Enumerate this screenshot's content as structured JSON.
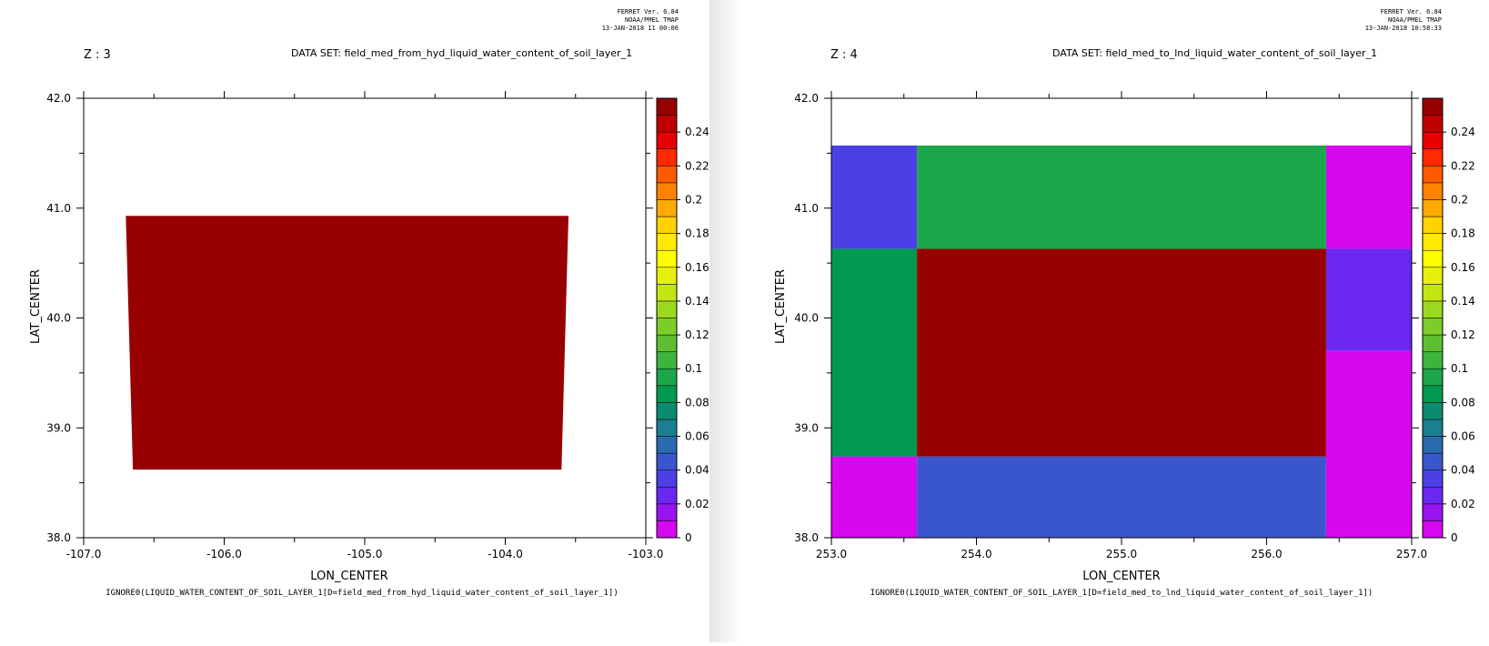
{
  "panels": [
    {
      "header": [
        "FERRET Ver. 6.84",
        "NOAA/PMEL TMAP",
        "13-JAN-2018 11 00:06"
      ],
      "z_label": "Z : 3",
      "dataset": "DATA SET: field_med_from_hyd_liquid_water_content_of_soil_layer_1",
      "footer": "IGNORE0(LIQUID_WATER_CONTENT_OF_SOIL_LAYER_1[D=field_med_from_hyd_liquid_water_content_of_soil_layer_1])"
    },
    {
      "header": [
        "FERRET Ver. 6.84",
        "NOAA/PMEL TMAP",
        "13-JAN-2018 10:58:33"
      ],
      "z_label": "Z : 4",
      "dataset": "DATA SET: field_med_to_lnd_liquid_water_content_of_soil_layer_1",
      "footer": "IGNORE0(LIQUID_WATER_CONTENT_OF_SOIL_LAYER_1[D=field_med_to_lnd_liquid_water_content_of_soil_layer_1])"
    }
  ],
  "chart_data": [
    {
      "type": "heatmap",
      "xlabel": "LON_CENTER",
      "ylabel": "LAT_CENTER",
      "xlim": [
        -107,
        -103
      ],
      "ylim": [
        38,
        42
      ],
      "xticks": [
        "-107.0",
        "-106.0",
        "-105.0",
        "-104.0",
        "-103.0"
      ],
      "yticks": [
        "38.0",
        "39.0",
        "40.0",
        "41.0",
        "42.0"
      ],
      "cells": [
        {
          "polygon": [
            [
              -106.7,
              40.93
            ],
            [
              -103.55,
              40.93
            ],
            [
              -103.6,
              38.62
            ],
            [
              -106.65,
              38.62
            ]
          ],
          "value": 0.25
        }
      ]
    },
    {
      "type": "heatmap",
      "xlabel": "LON_CENTER",
      "ylabel": "LAT_CENTER",
      "xlim": [
        253,
        257
      ],
      "ylim": [
        38,
        42
      ],
      "xticks": [
        "253.0",
        "254.0",
        "255.0",
        "256.0",
        "257.0"
      ],
      "yticks": [
        "38.0",
        "39.0",
        "40.0",
        "41.0",
        "42.0"
      ],
      "x_edges": [
        253.0,
        253.59,
        256.41,
        257.0
      ],
      "cells": [
        {
          "x": [
            253.0,
            253.59
          ],
          "y": [
            38.0,
            38.74
          ],
          "value": 0.0
        },
        {
          "x": [
            253.0,
            253.59
          ],
          "y": [
            38.74,
            40.63
          ],
          "value": 0.08
        },
        {
          "x": [
            253.0,
            253.59
          ],
          "y": [
            40.63,
            41.57
          ],
          "value": 0.03
        },
        {
          "x": [
            253.59,
            256.41
          ],
          "y": [
            38.0,
            38.74
          ],
          "value": 0.04
        },
        {
          "x": [
            253.59,
            256.41
          ],
          "y": [
            38.74,
            40.63
          ],
          "value": 0.25
        },
        {
          "x": [
            253.59,
            256.41
          ],
          "y": [
            40.63,
            41.57
          ],
          "value": 0.09
        },
        {
          "x": [
            256.41,
            257.0
          ],
          "y": [
            38.0,
            39.7
          ],
          "value": 0.0
        },
        {
          "x": [
            256.41,
            257.0
          ],
          "y": [
            39.7,
            40.63
          ],
          "value": 0.02
        },
        {
          "x": [
            256.41,
            257.0
          ],
          "y": [
            40.63,
            41.57
          ],
          "value": 0.0
        }
      ]
    }
  ],
  "colorbar": {
    "levels": [
      0,
      0.01,
      0.02,
      0.03,
      0.04,
      0.05,
      0.06,
      0.07,
      0.08,
      0.09,
      0.1,
      0.11,
      0.12,
      0.13,
      0.14,
      0.15,
      0.16,
      0.17,
      0.18,
      0.19,
      0.2,
      0.21,
      0.22,
      0.23,
      0.24,
      0.25
    ],
    "colors": [
      "#d708f0",
      "#9814f0",
      "#6a28f0",
      "#4a40e6",
      "#3a56cc",
      "#2a6ab0",
      "#1a7f90",
      "#0a8c6e",
      "#009950",
      "#1ca64a",
      "#3cb43e",
      "#5cbf32",
      "#7ccc2a",
      "#9cd91e",
      "#c2e614",
      "#e6f00a",
      "#ffff00",
      "#ffea00",
      "#ffd200",
      "#ffaa00",
      "#ff8200",
      "#ff5a00",
      "#ff2a00",
      "#e60000",
      "#c00000",
      "#980000"
    ],
    "labels": [
      "0",
      "0.02",
      "0.04",
      "0.06",
      "0.08",
      "0.1",
      "0.12",
      "0.14",
      "0.16",
      "0.18",
      "0.2",
      "0.22",
      "0.24"
    ]
  }
}
